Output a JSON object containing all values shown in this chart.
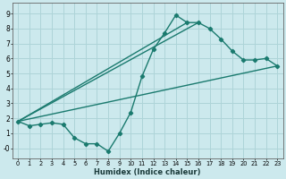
{
  "xlabel": "Humidex (Indice chaleur)",
  "xlim": [
    -0.5,
    23.5
  ],
  "ylim": [
    -0.7,
    9.7
  ],
  "xticks": [
    0,
    1,
    2,
    3,
    4,
    5,
    6,
    7,
    8,
    9,
    10,
    11,
    12,
    13,
    14,
    15,
    16,
    17,
    18,
    19,
    20,
    21,
    22,
    23
  ],
  "yticks": [
    0,
    1,
    2,
    3,
    4,
    5,
    6,
    7,
    8,
    9
  ],
  "ytick_labels": [
    "-0",
    "1",
    "2",
    "3",
    "4",
    "5",
    "6",
    "7",
    "8",
    "9"
  ],
  "bg_color": "#cce9ed",
  "grid_color": "#aed4d8",
  "line_color": "#1a7a6e",
  "line_width": 1.0,
  "marker": "D",
  "marker_size": 2.2,
  "series": [
    {
      "x": [
        0,
        1,
        2,
        3,
        4,
        5,
        6,
        7,
        8,
        9,
        10,
        11,
        12,
        13,
        14,
        15,
        16,
        17,
        18,
        19,
        20,
        21,
        22,
        23
      ],
      "y": [
        1.8,
        1.5,
        1.6,
        1.7,
        1.6,
        0.7,
        0.3,
        0.3,
        -0.2,
        1.0,
        2.4,
        4.8,
        6.6,
        7.7,
        8.9,
        8.4,
        8.4,
        8.0,
        7.3,
        6.5,
        5.9,
        5.9,
        6.0,
        5.5
      ]
    },
    {
      "x": [
        0,
        23
      ],
      "y": [
        1.8,
        5.5
      ]
    },
    {
      "x": [
        0,
        15
      ],
      "y": [
        1.8,
        8.4
      ]
    },
    {
      "x": [
        0,
        16
      ],
      "y": [
        1.8,
        8.4
      ]
    }
  ]
}
